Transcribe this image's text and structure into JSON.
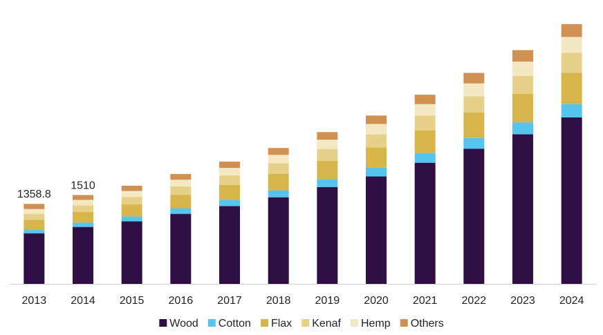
{
  "chart_data": {
    "type": "bar",
    "stacked": true,
    "categories": [
      "2013",
      "2014",
      "2015",
      "2016",
      "2017",
      "2018",
      "2019",
      "2020",
      "2021",
      "2022",
      "2023",
      "2024"
    ],
    "series": [
      {
        "name": "Wood",
        "color": "#2e1044",
        "values": [
          860,
          967,
          1063,
          1190,
          1323,
          1471,
          1646,
          1827,
          2058,
          2297,
          2543,
          2828
        ]
      },
      {
        "name": "Cotton",
        "color": "#55c5ef",
        "values": [
          65,
          73,
          83,
          95,
          106,
          118,
          133,
          147,
          164,
          182,
          202,
          225
        ]
      },
      {
        "name": "Flax",
        "color": "#d8b54a",
        "values": [
          163,
          181,
          203,
          228,
          253,
          282,
          313,
          346,
          388,
          433,
          482,
          532
        ]
      },
      {
        "name": "Kenaf",
        "color": "#e7d08a",
        "values": [
          102,
          115,
          128,
          144,
          162,
          180,
          201,
          222,
          250,
          277,
          307,
          342
        ]
      },
      {
        "name": "Hemp",
        "color": "#f4e8c2",
        "values": [
          82,
          91,
          102,
          114,
          127,
          142,
          157,
          175,
          195,
          218,
          242,
          269
        ]
      },
      {
        "name": "Others",
        "color": "#cf9052",
        "values": [
          87,
          83,
          89,
          97,
          106,
          116,
          129,
          143,
          159,
          178,
          196,
          218
        ]
      }
    ],
    "data_labels": [
      {
        "category": "2013",
        "text": "1358.8"
      },
      {
        "category": "2014",
        "text": "1510"
      }
    ],
    "ylim": [
      0,
      4800
    ],
    "grid": false,
    "legend_position": "bottom",
    "title": "",
    "xlabel": "",
    "ylabel": ""
  }
}
